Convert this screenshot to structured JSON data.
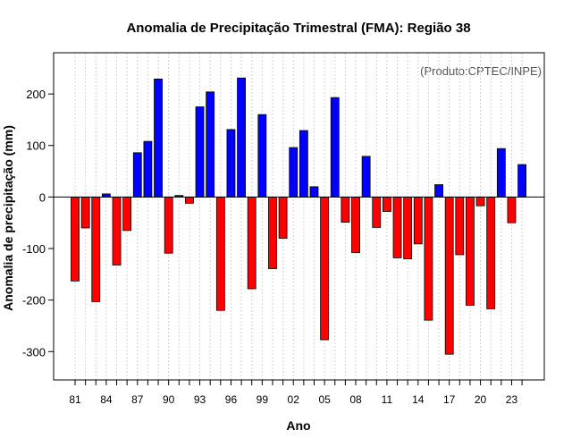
{
  "chart_data": {
    "type": "bar",
    "title": "Anomalia de Precipitação Trimestral (FMA): Região 38",
    "xlabel": "Ano",
    "ylabel": "Anomalia de precipitação (mm)",
    "credit": "(Produto:CPTEC/INPE)",
    "ylim": [
      -355,
      280
    ],
    "yticks": [
      -300,
      -200,
      -100,
      0,
      100,
      200
    ],
    "categories": [
      1981,
      1982,
      1983,
      1984,
      1985,
      1986,
      1987,
      1988,
      1989,
      1990,
      1991,
      1992,
      1993,
      1994,
      1995,
      1996,
      1997,
      1998,
      1999,
      2000,
      2001,
      2002,
      2003,
      2004,
      2005,
      2006,
      2007,
      2008,
      2009,
      2010,
      2011,
      2012,
      2013,
      2014,
      2015,
      2016,
      2017,
      2018,
      2019,
      2020,
      2021,
      2022,
      2023,
      2024
    ],
    "values": [
      -163,
      -60,
      -203,
      6,
      -132,
      -65,
      86,
      108,
      229,
      -109,
      3,
      -12,
      175,
      204,
      -220,
      131,
      231,
      -178,
      160,
      -139,
      -80,
      96,
      129,
      20,
      -277,
      193,
      -49,
      -108,
      79,
      -59,
      -28,
      -118,
      -120,
      -91,
      -239,
      24,
      -305,
      -112,
      -210,
      -17,
      -217,
      94,
      -50,
      63
    ],
    "xtick_labels": [
      "81",
      "84",
      "87",
      "90",
      "93",
      "96",
      "99",
      "02",
      "05",
      "08",
      "11",
      "14",
      "17",
      "20",
      "23"
    ],
    "xtick_positions": [
      1981,
      1984,
      1987,
      1990,
      1993,
      1996,
      1999,
      2002,
      2005,
      2008,
      2011,
      2014,
      2017,
      2020,
      2023
    ],
    "colors": {
      "positive": "#0000ff",
      "negative": "#ff0000",
      "grid": "#d3d3d3",
      "zero_line": "#000000"
    },
    "grid": true
  }
}
